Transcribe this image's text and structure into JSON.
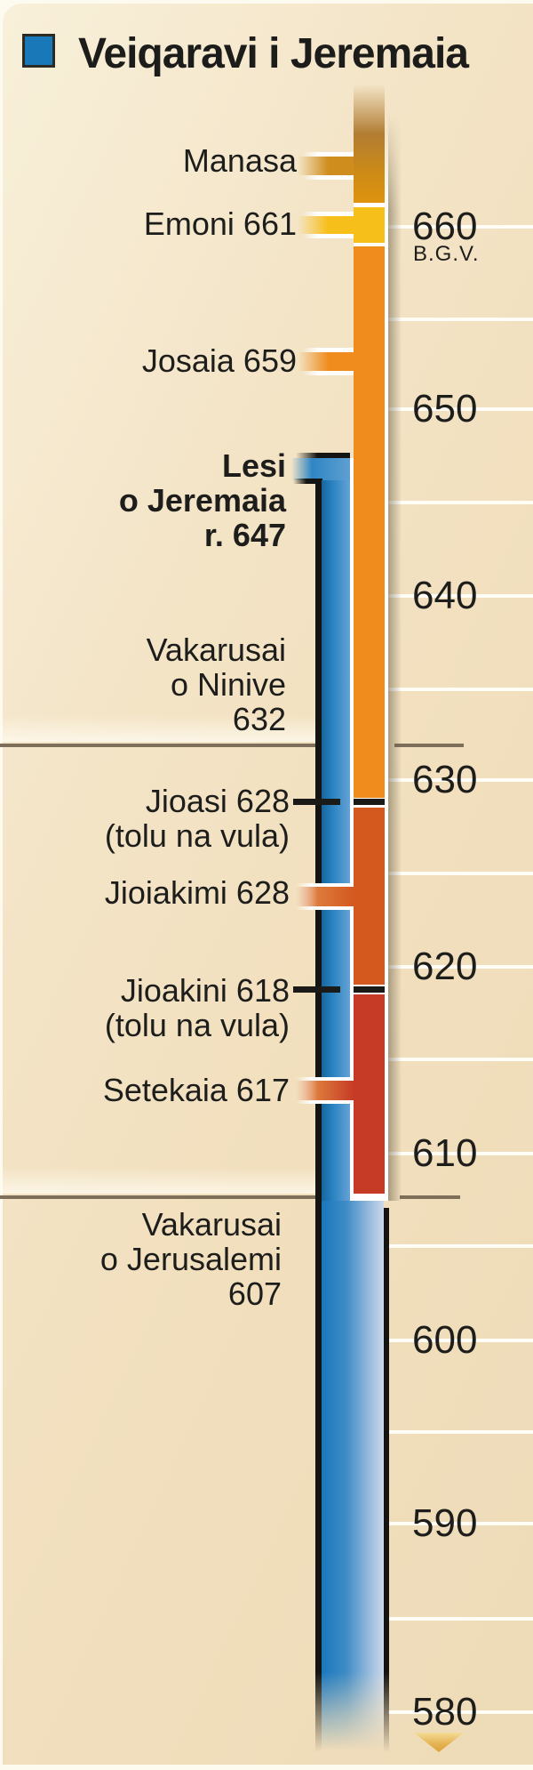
{
  "legend": {
    "label": "Veiqaravi i Jeremaia",
    "swatch_color": "#1878b8"
  },
  "axis": {
    "era_label": "B.G.V.",
    "decades": [
      "660",
      "650",
      "640",
      "630",
      "620",
      "610",
      "600",
      "590",
      "580"
    ],
    "minor_tick_step_years": 5
  },
  "kings": [
    {
      "name": "Manasa",
      "label": "Manasa",
      "note": "",
      "color": "#df930f"
    },
    {
      "name": "Emoni",
      "label": "Emoni 661",
      "note": "",
      "color": "#f7bf19"
    },
    {
      "name": "Josaia",
      "label": "Josaia 659",
      "note": "",
      "color": "#ef8c1d"
    },
    {
      "name": "Jioasi",
      "label": "Jioasi 628",
      "note": "(tolu na vula)",
      "color": "#1a1a18"
    },
    {
      "name": "Jioiakimi",
      "label": "Jioiakimi 628",
      "note": "",
      "color": "#d4591f"
    },
    {
      "name": "Jioakini",
      "label": "Jioakini 618",
      "note": "(tolu na vula)",
      "color": "#1a1a18"
    },
    {
      "name": "Setekaia",
      "label": "Setekaia 617",
      "note": "",
      "color": "#c63b26"
    }
  ],
  "events": [
    {
      "name": "lesi-o-jeremaia",
      "label_lines": [
        "Lesi",
        "o Jeremaia",
        "r. 647"
      ],
      "year": 647,
      "bold": true
    },
    {
      "name": "vakarusai-o-ninive",
      "label_lines": [
        "Vakarusai",
        "o Ninive",
        "632"
      ],
      "year": 632,
      "bold": false
    },
    {
      "name": "vakarusai-o-jerusalemi",
      "label_lines": [
        "Vakarusai",
        "o Jerusalemi",
        "607"
      ],
      "year": 607,
      "bold": false
    }
  ],
  "colors": {
    "jeremiah_blue": "#1a77bd",
    "manasseh": "#df930f",
    "amon": "#f7bf19",
    "josiah": "#ef8c1d",
    "jehoiakim": "#d4591f",
    "zedekiah": "#c63b26",
    "short_reign_tick": "#1a1a18",
    "gridline": "#fffdf6",
    "event_line": "#7d6f5a",
    "text": "#1d1d1b",
    "bar_shadow": "#8d8067",
    "arrow_gold": "#dda238",
    "white": "#ffffff"
  }
}
